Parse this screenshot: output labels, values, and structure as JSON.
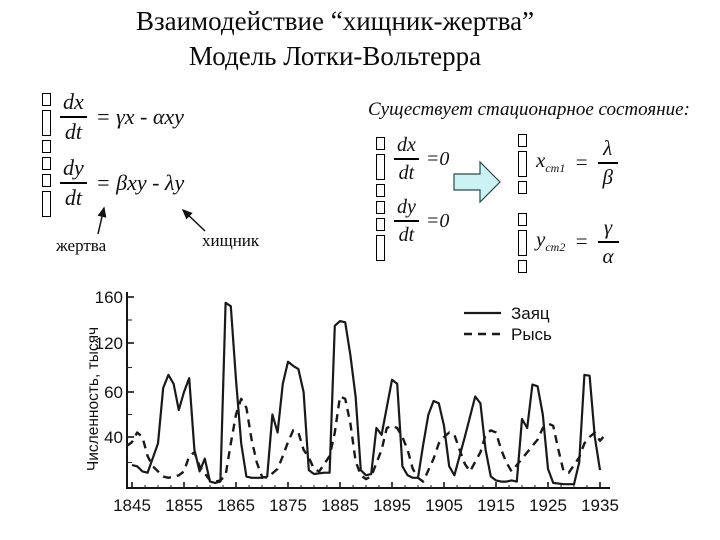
{
  "title": {
    "line1": "Взаимодействие “хищник-жертва”",
    "line2": "Модель Лотки-Вольтерра"
  },
  "model": {
    "system": {
      "eq1": {
        "num": "dx",
        "den": "dt",
        "rhs": "= γx - αxy"
      },
      "eq2": {
        "num": "dy",
        "den": "dt",
        "rhs": "= βxy - λy"
      }
    },
    "labels": {
      "prey": "жертва",
      "predator": "хищник"
    }
  },
  "stationary": {
    "heading": "Существует стационарное состояние:",
    "system": {
      "eq1": {
        "num": "dx",
        "den": "dt",
        "rhs": "=0"
      },
      "eq2": {
        "num": "dy",
        "den": "dt",
        "rhs": "=0"
      }
    },
    "result": {
      "x": {
        "var": "x",
        "sub": "ст1",
        "eq": "=",
        "num": "λ",
        "den": "β"
      },
      "y": {
        "var": "y",
        "sub": "ст2",
        "eq": "=",
        "num": "γ",
        "den": "α"
      }
    },
    "arrow_color": "#cdf2f4"
  },
  "chart_data": {
    "type": "line",
    "title": "",
    "xlabel": "",
    "ylabel": "Численность, тысяч",
    "xlim": [
      1845,
      1937
    ],
    "ylim": [
      0,
      170
    ],
    "grid": false,
    "legend_position": "top-right",
    "xticks": [
      1845,
      1855,
      1865,
      1875,
      1885,
      1895,
      1905,
      1915,
      1925,
      1935
    ],
    "yticks_major": [
      40,
      60,
      120,
      160
    ],
    "yticks_minor": [
      20,
      50,
      90,
      140
    ],
    "series": [
      {
        "name": "Заяц",
        "style": "solid",
        "points": [
          [
            1845,
            18
          ],
          [
            1846,
            17
          ],
          [
            1847,
            13
          ],
          [
            1848,
            12
          ],
          [
            1850,
            35
          ],
          [
            1851,
            65
          ],
          [
            1852,
            81
          ],
          [
            1853,
            70
          ],
          [
            1854,
            52
          ],
          [
            1855,
            60
          ],
          [
            1856,
            77
          ],
          [
            1857,
            30
          ],
          [
            1858,
            13
          ],
          [
            1859,
            23
          ],
          [
            1860,
            5
          ],
          [
            1861,
            4
          ],
          [
            1862,
            5
          ],
          [
            1863,
            155
          ],
          [
            1864,
            152
          ],
          [
            1865,
            75
          ],
          [
            1866,
            35
          ],
          [
            1867,
            9
          ],
          [
            1868,
            8
          ],
          [
            1870,
            8
          ],
          [
            1871,
            9
          ],
          [
            1872,
            50
          ],
          [
            1873,
            42
          ],
          [
            1874,
            70
          ],
          [
            1875,
            97
          ],
          [
            1876,
            92
          ],
          [
            1877,
            88
          ],
          [
            1878,
            60
          ],
          [
            1879,
            14
          ],
          [
            1880,
            11
          ],
          [
            1882,
            12
          ],
          [
            1883,
            12
          ],
          [
            1884,
            135
          ],
          [
            1885,
            139
          ],
          [
            1886,
            138
          ],
          [
            1887,
            105
          ],
          [
            1888,
            58
          ],
          [
            1889,
            14
          ],
          [
            1890,
            10
          ],
          [
            1891,
            11
          ],
          [
            1892,
            44
          ],
          [
            1893,
            41
          ],
          [
            1895,
            75
          ],
          [
            1896,
            70
          ],
          [
            1897,
            17
          ],
          [
            1898,
            10
          ],
          [
            1899,
            8
          ],
          [
            1900,
            8
          ],
          [
            1901,
            34
          ],
          [
            1902,
            50
          ],
          [
            1903,
            56
          ],
          [
            1904,
            55
          ],
          [
            1905,
            45
          ],
          [
            1906,
            17
          ],
          [
            1907,
            10
          ],
          [
            1908,
            25
          ],
          [
            1909,
            40
          ],
          [
            1911,
            58
          ],
          [
            1912,
            55
          ],
          [
            1913,
            30
          ],
          [
            1914,
            9
          ],
          [
            1915,
            6
          ],
          [
            1916,
            5
          ],
          [
            1917,
            5
          ],
          [
            1918,
            6
          ],
          [
            1919,
            5
          ],
          [
            1920,
            48
          ],
          [
            1921,
            44
          ],
          [
            1922,
            69
          ],
          [
            1923,
            67
          ],
          [
            1924,
            50
          ],
          [
            1925,
            15
          ],
          [
            1926,
            4
          ],
          [
            1928,
            3
          ],
          [
            1930,
            3
          ],
          [
            1931,
            20
          ],
          [
            1932,
            81
          ],
          [
            1933,
            80
          ],
          [
            1934,
            40
          ],
          [
            1935,
            14
          ]
        ]
      },
      {
        "name": "Рысь",
        "style": "dashed",
        "points": [
          [
            1844,
            33
          ],
          [
            1845,
            36
          ],
          [
            1846,
            42
          ],
          [
            1847,
            40
          ],
          [
            1848,
            25
          ],
          [
            1849,
            17
          ],
          [
            1851,
            9
          ],
          [
            1852,
            8
          ],
          [
            1854,
            10
          ],
          [
            1855,
            13
          ],
          [
            1856,
            25
          ],
          [
            1857,
            28
          ],
          [
            1858,
            17
          ],
          [
            1860,
            6
          ],
          [
            1861,
            5
          ],
          [
            1862,
            6
          ],
          [
            1863,
            10
          ],
          [
            1864,
            35
          ],
          [
            1865,
            50
          ],
          [
            1866,
            57
          ],
          [
            1867,
            53
          ],
          [
            1868,
            38
          ],
          [
            1869,
            20
          ],
          [
            1870,
            9
          ],
          [
            1871,
            8
          ],
          [
            1873,
            15
          ],
          [
            1874,
            25
          ],
          [
            1875,
            36
          ],
          [
            1876,
            43
          ],
          [
            1877,
            42
          ],
          [
            1878,
            30
          ],
          [
            1879,
            24
          ],
          [
            1880,
            15
          ],
          [
            1881,
            13
          ],
          [
            1883,
            25
          ],
          [
            1884,
            42
          ],
          [
            1885,
            58
          ],
          [
            1886,
            57
          ],
          [
            1887,
            46
          ],
          [
            1888,
            21
          ],
          [
            1889,
            10
          ],
          [
            1890,
            7
          ],
          [
            1891,
            9
          ],
          [
            1893,
            30
          ],
          [
            1894,
            44
          ],
          [
            1895,
            45
          ],
          [
            1896,
            44
          ],
          [
            1897,
            40
          ],
          [
            1898,
            30
          ],
          [
            1899,
            15
          ],
          [
            1900,
            8
          ],
          [
            1901,
            5
          ],
          [
            1903,
            23
          ],
          [
            1904,
            35
          ],
          [
            1905,
            40
          ],
          [
            1906,
            42
          ],
          [
            1907,
            41
          ],
          [
            1908,
            30
          ],
          [
            1909,
            19
          ],
          [
            1910,
            13
          ],
          [
            1912,
            28
          ],
          [
            1913,
            41
          ],
          [
            1914,
            43
          ],
          [
            1915,
            42
          ],
          [
            1916,
            30
          ],
          [
            1917,
            20
          ],
          [
            1918,
            13
          ],
          [
            1920,
            23
          ],
          [
            1922,
            33
          ],
          [
            1923,
            38
          ],
          [
            1924,
            44
          ],
          [
            1925,
            46
          ],
          [
            1926,
            45
          ],
          [
            1927,
            30
          ],
          [
            1928,
            13
          ],
          [
            1929,
            12
          ],
          [
            1931,
            24
          ],
          [
            1932,
            35
          ],
          [
            1933,
            40
          ],
          [
            1934,
            42
          ],
          [
            1935,
            37
          ],
          [
            1936,
            41
          ]
        ]
      }
    ]
  }
}
